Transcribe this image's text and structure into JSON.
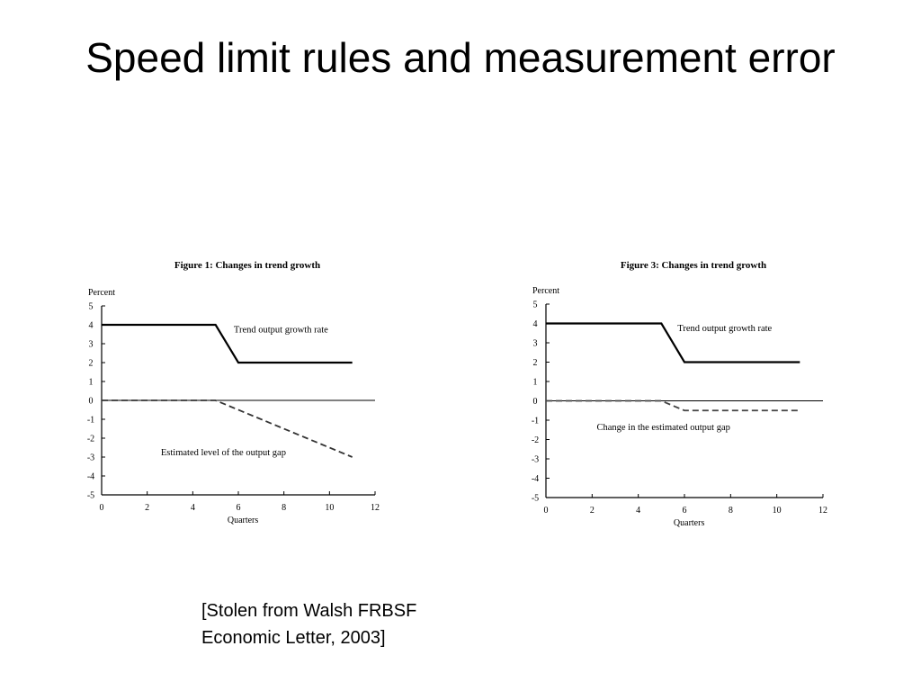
{
  "slide": {
    "title": "Speed limit rules and measurement error",
    "caption_lines": [
      "[Stolen from Walsh FRBSF",
      "Economic Letter, 2003]"
    ]
  },
  "chart_data": [
    {
      "type": "line",
      "title": "Figure 1: Changes in trend growth",
      "xlabel": "Quarters",
      "ylabel": "Percent",
      "xlim": [
        0,
        12
      ],
      "ylim": [
        -5,
        5
      ],
      "xticks": [
        0,
        2,
        4,
        6,
        8,
        10,
        12
      ],
      "yticks": [
        5,
        4,
        3,
        2,
        1,
        0,
        -1,
        -2,
        -3,
        -4,
        -5
      ],
      "series": [
        {
          "name": "Trend output growth rate",
          "style": "solid",
          "color": "#000000",
          "x": [
            0,
            5,
            6,
            11
          ],
          "y": [
            4,
            4,
            2,
            2
          ],
          "label_at": [
            5.8,
            3.6
          ]
        },
        {
          "name": "Estimated level of the output gap",
          "style": "dashed",
          "color": "#333333",
          "x": [
            0,
            5,
            11
          ],
          "y": [
            0,
            0,
            -3
          ],
          "label_at": [
            2.6,
            -2.9
          ]
        }
      ]
    },
    {
      "type": "line",
      "title": "Figure 3: Changes in trend growth",
      "xlabel": "Quarters",
      "ylabel": "Percent",
      "xlim": [
        0,
        12
      ],
      "ylim": [
        -5,
        5
      ],
      "xticks": [
        0,
        2,
        4,
        6,
        8,
        10,
        12
      ],
      "yticks": [
        5,
        4,
        3,
        2,
        1,
        0,
        -1,
        -2,
        -3,
        -4,
        -5
      ],
      "series": [
        {
          "name": "Trend output growth rate",
          "style": "solid",
          "color": "#000000",
          "x": [
            0,
            5,
            6,
            11
          ],
          "y": [
            4,
            4,
            2,
            2
          ],
          "label_at": [
            5.7,
            3.6
          ]
        },
        {
          "name": "Change in the estimated output gap",
          "style": "dashed",
          "color": "#444444",
          "x": [
            0,
            5,
            6,
            11
          ],
          "y": [
            0,
            0,
            -0.5,
            -0.5
          ],
          "label_at": [
            2.2,
            -1.5
          ]
        }
      ]
    }
  ]
}
